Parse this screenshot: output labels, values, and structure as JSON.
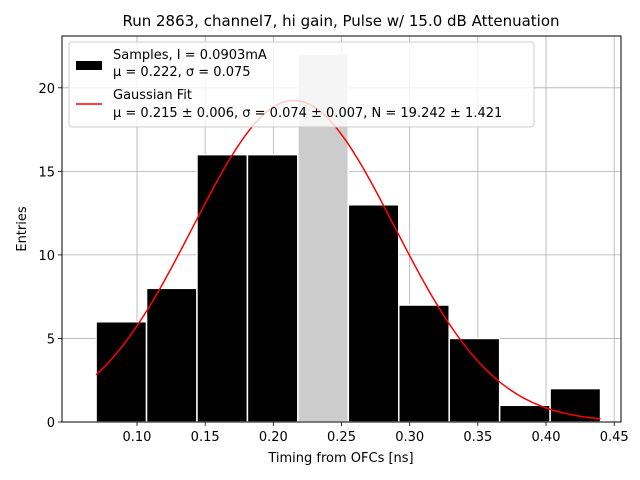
{
  "chart_data": {
    "type": "bar",
    "title": "Run 2863, channel7, hi gain, Pulse w/ 15.0 dB Attenuation",
    "xlabel": "Timing from OFCs [ns]",
    "ylabel": "Entries",
    "xlim": [
      0.045,
      0.455
    ],
    "ylim": [
      0,
      23.1
    ],
    "xticks": [
      0.1,
      0.15,
      0.2,
      0.25,
      0.3,
      0.35,
      0.4,
      0.45
    ],
    "xtick_labels": [
      "0.10",
      "0.15",
      "0.20",
      "0.25",
      "0.30",
      "0.35",
      "0.40",
      "0.45"
    ],
    "yticks": [
      0,
      5,
      10,
      15,
      20
    ],
    "ytick_labels": [
      "0",
      "5",
      "10",
      "15",
      "20"
    ],
    "grid": true,
    "legend_position": "top-left",
    "histogram": {
      "name": "Samples",
      "legend_lines": [
        "Samples, I = 0.0903mA",
        "μ = 0.222, σ = 0.075"
      ],
      "color": "#000000",
      "highlight_color": "#cccccc",
      "bins": [
        {
          "x0": 0.07,
          "x1": 0.107,
          "count": 6
        },
        {
          "x0": 0.107,
          "x1": 0.144,
          "count": 8
        },
        {
          "x0": 0.144,
          "x1": 0.181,
          "count": 16
        },
        {
          "x0": 0.181,
          "x1": 0.218,
          "count": 16
        },
        {
          "x0": 0.218,
          "x1": 0.255,
          "count": 22,
          "highlight": true
        },
        {
          "x0": 0.255,
          "x1": 0.292,
          "count": 13
        },
        {
          "x0": 0.292,
          "x1": 0.329,
          "count": 7
        },
        {
          "x0": 0.329,
          "x1": 0.366,
          "count": 5
        },
        {
          "x0": 0.366,
          "x1": 0.403,
          "count": 1
        },
        {
          "x0": 0.403,
          "x1": 0.44,
          "count": 2
        }
      ]
    },
    "fit": {
      "name": "Gaussian Fit",
      "legend_lines": [
        "Gaussian Fit",
        "μ = 0.215 ± 0.006, σ = 0.074 ± 0.007, N = 19.242 ± 1.421"
      ],
      "color": "#ff0000",
      "mu": 0.215,
      "sigma": 0.074,
      "N": 19.242,
      "x_range": [
        0.07,
        0.44
      ]
    }
  }
}
